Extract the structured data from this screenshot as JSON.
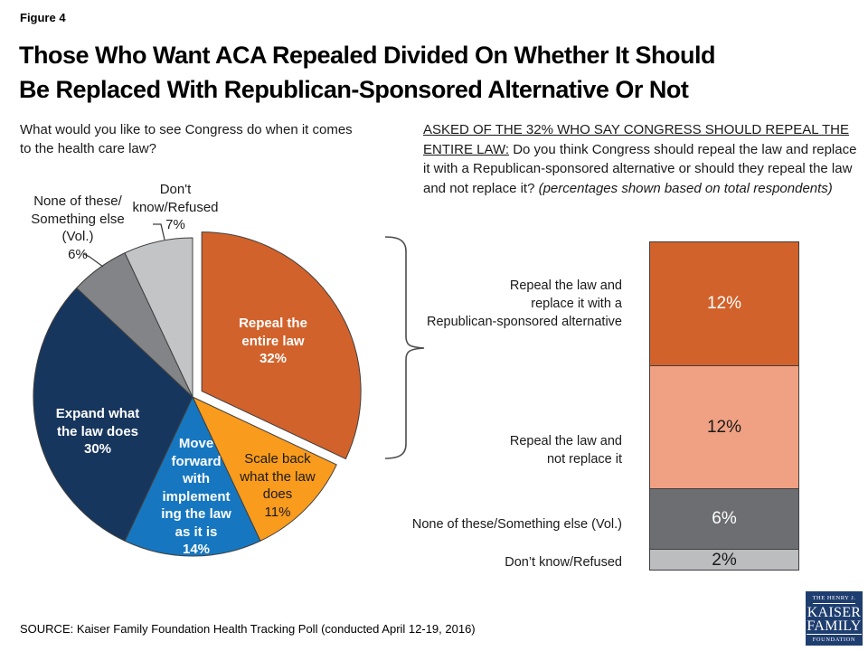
{
  "figure_label": "Figure 4",
  "title": "Those Who Want ACA Repealed Divided On Whether It Should\nBe Replaced With Republican-Sponsored Alternative Or Not",
  "left_question": "What would you like to see Congress do when it comes\nto the health care law?",
  "right_question": {
    "lead": "ASKED OF THE 32% WHO SAY CONGRESS SHOULD REPEAL THE ENTIRE LAW:",
    "body": " Do you think Congress should repeal the law and replace it with a Republican-sponsored alternative or should they repeal the law and not replace it? ",
    "note": "(percentages shown based on total respondents)"
  },
  "source": "SOURCE: Kaiser Family Foundation Health Tracking Poll (conducted April 12-19, 2016)",
  "logo": {
    "line1": "THE HENRY J.",
    "line2": "KAISER",
    "line3": "FAMILY",
    "line4": "FOUNDATION",
    "bg": "#1F3E70"
  },
  "chart_data": [
    {
      "type": "pie",
      "title": "What would you like to see Congress do when it comes to the health care law?",
      "unit": "%",
      "start_angle": "12 o'clock",
      "direction": "clockwise",
      "slices": [
        {
          "label": "Repeal the entire law",
          "value": 32,
          "color": "#D2622B",
          "text_color": "#FFFFFF",
          "exploded": true,
          "display_label": "Repeal the\nentire law\n32%"
        },
        {
          "label": "Scale back what the law does",
          "value": 11,
          "color": "#F99B1C",
          "text_color": "#1A1A1A",
          "display_label": "Scale back\nwhat the law\ndoes\n11%"
        },
        {
          "label": "Move forward with implementing the law as it is",
          "value": 14,
          "color": "#1677C0",
          "text_color": "#FFFFFF",
          "display_label": "Move\nforward\nwith\nimplement\ning the law\nas it is\n14%"
        },
        {
          "label": "Expand what the law does",
          "value": 30,
          "color": "#17365D",
          "text_color": "#FFFFFF",
          "display_label": "Expand what\nthe law does\n30%"
        },
        {
          "label": "None of these/Something else (Vol.)",
          "value": 6,
          "color": "#828487",
          "outside_label": "None of these/\nSomething else\n(Vol.)\n6%"
        },
        {
          "label": "Don't know/Refused",
          "value": 7,
          "color": "#C3C4C6",
          "outside_label": "Don't\nknow/Refused\n7%"
        }
      ]
    },
    {
      "type": "bar",
      "subtype": "single-stacked-column",
      "note": "percentages shown based on total respondents; column totals 32%",
      "segments": [
        {
          "label": "Repeal the law and replace it with a Republican-sponsored alternative",
          "display_label": "Repeal the law and\nreplace it with a\nRepublican-sponsored alternative",
          "value": 12,
          "value_text": "12%",
          "color": "#D2622B",
          "text_color": "#FFFFFF"
        },
        {
          "label": "Repeal the law and not replace it",
          "display_label": "Repeal the law and\nnot replace it",
          "value": 12,
          "value_text": "12%",
          "color": "#F0A183",
          "text_color": "#1A1A1A"
        },
        {
          "label": "None of these/Something else (Vol.)",
          "display_label": "None of these/Something else (Vol.)",
          "value": 6,
          "value_text": "6%",
          "color": "#6D6E71",
          "text_color": "#FFFFFF"
        },
        {
          "label": "Don’t know/Refused",
          "display_label": "Don’t know/Refused",
          "value": 2,
          "value_text": "2%",
          "color": "#BBBDBF",
          "text_color": "#1A1A1A"
        }
      ]
    }
  ]
}
